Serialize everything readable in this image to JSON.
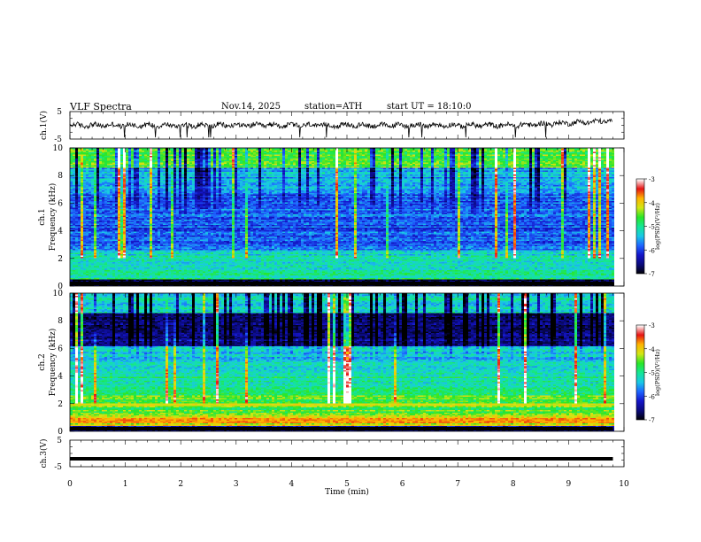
{
  "header": {
    "title": "VLF  Spectra",
    "date": "Nov.14, 2025",
    "station": "station=ATH",
    "start": "start  UT  =   18:10:0"
  },
  "colors": {
    "ramp": [
      "#000000",
      "#0a0a7a",
      "#1414c8",
      "#1e64ff",
      "#19c8e6",
      "#14e696",
      "#28e628",
      "#d2e614",
      "#ffb400",
      "#e61414",
      "#ffffff"
    ]
  },
  "chart_data": [
    {
      "type": "line",
      "name": "ch1-waveform",
      "ylabel": "ch.1(V)",
      "ylim": [
        -5,
        5
      ],
      "yticks": [
        "5",
        "-5"
      ],
      "description_note": "noisy waveform around 0 V, slow drift upward near end",
      "x_range_min": [
        0,
        10
      ],
      "baseline": 0
    },
    {
      "type": "heatmap",
      "name": "ch1-spectrogram",
      "ylabel": "Frequency  (kHz)",
      "channel_label": "ch.1",
      "ylim": [
        0,
        10
      ],
      "yticks": [
        "0",
        "2",
        "4",
        "6",
        "8",
        "10"
      ],
      "x_range_min": [
        0,
        9.8
      ],
      "colorbar": {
        "label": "log(PSD)(V²/Hz)",
        "range": [
          -7,
          -3
        ],
        "ticks": [
          "-3",
          "-4",
          "-5",
          "-6",
          "-7"
        ]
      }
    },
    {
      "type": "heatmap",
      "name": "ch2-spectrogram",
      "ylabel": "Frequency  (kHz)",
      "channel_label": "ch.2",
      "ylim": [
        0,
        10
      ],
      "yticks": [
        "0",
        "2",
        "4",
        "6",
        "8",
        "10"
      ],
      "x_range_min": [
        0,
        9.8
      ],
      "colorbar": {
        "label": "log(PSD)(V²/Hz)",
        "range": [
          -7,
          -3
        ],
        "ticks": [
          "-3",
          "-4",
          "-5",
          "-6",
          "-7"
        ]
      }
    },
    {
      "type": "line",
      "name": "ch3-waveform",
      "ylabel": "ch.3(V)",
      "ylim": [
        -5,
        5
      ],
      "yticks": [
        "5",
        "-5"
      ],
      "x_range_min": [
        0,
        9.8
      ],
      "constant_value": -2
    }
  ],
  "xaxis": {
    "label": "Time  (min)",
    "range": [
      0,
      10
    ],
    "ticks": [
      "0",
      "1",
      "2",
      "3",
      "4",
      "5",
      "6",
      "7",
      "8",
      "9",
      "10"
    ]
  }
}
